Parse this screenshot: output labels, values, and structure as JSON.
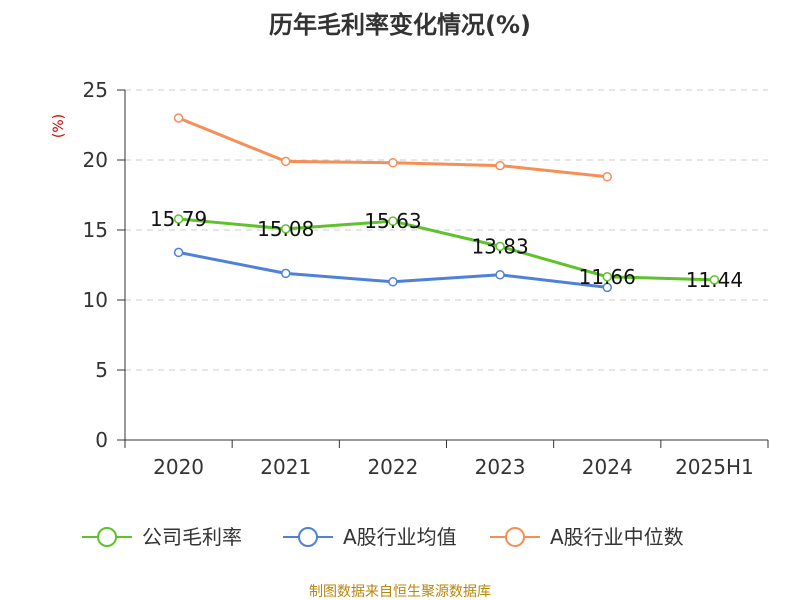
{
  "chart_data": {
    "type": "line",
    "title": "历年毛利率变化情况(%)",
    "ylabel": "(%)",
    "ylim": [
      0,
      25
    ],
    "yticks": [
      0,
      5,
      10,
      15,
      20,
      25
    ],
    "categories": [
      "2020",
      "2021",
      "2022",
      "2023",
      "2024",
      "2025H1"
    ],
    "grid": true,
    "legend_position": "bottom",
    "series": [
      {
        "name": "公司毛利率",
        "color": "#5ec22b",
        "values": [
          15.79,
          15.08,
          15.63,
          13.83,
          11.66,
          11.44
        ],
        "labels": [
          "15.79",
          "15.08",
          "15.63",
          "13.83",
          "11.66",
          "11.44"
        ],
        "show_labels": true
      },
      {
        "name": "A股行业均值",
        "color": "#4e81d9",
        "values": [
          13.4,
          11.9,
          11.3,
          11.8,
          10.9,
          null
        ],
        "show_labels": false
      },
      {
        "name": "A股行业中位数",
        "color": "#f58e57",
        "values": [
          23.0,
          19.9,
          19.8,
          19.6,
          18.8,
          null
        ],
        "show_labels": false
      }
    ]
  },
  "source": "制图数据来自恒生聚源数据库"
}
